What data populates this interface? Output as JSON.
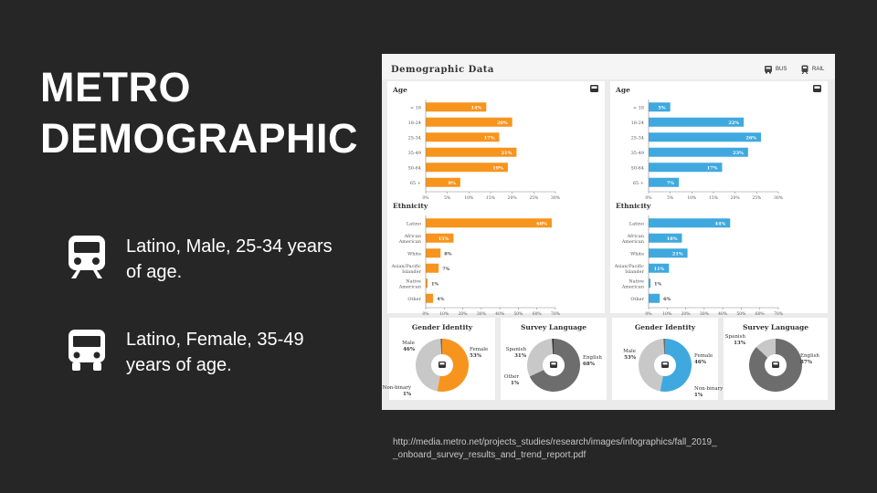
{
  "slide": {
    "title_line1": "METRO",
    "title_line2": "DEMOGRAPHIC",
    "rail_text": "Latino, Male, 25-34 years of age.",
    "bus_text": "Latino, Female, 35-49 years of age.",
    "source": "http://media.metro.net/projects_studies/research/images/infographics/fall_2019__onboard_survey_results_and_trend_report.pdf"
  },
  "infographic": {
    "title": "Demographic Data",
    "legend_bus": "BUS",
    "legend_rail": "RAIL",
    "colors": {
      "bus": "#f7941d",
      "rail": "#3fa9df",
      "grey": "#c8c8c8",
      "dark": "#6d6d6d"
    }
  },
  "chart_data": [
    {
      "id": "bus-age",
      "type": "bar",
      "orientation": "horizontal",
      "title": "Age",
      "categories": [
        "< 18",
        "18-24",
        "25-34",
        "35-49",
        "50-64",
        "65 +"
      ],
      "values": [
        14,
        20,
        17,
        21,
        19,
        8
      ],
      "data_labels": [
        "14%",
        "20%",
        "17%",
        "21%",
        "19%",
        "8%"
      ],
      "xlim": [
        0,
        30
      ],
      "xticks": [
        "0%",
        "5%",
        "10%",
        "15%",
        "20%",
        "25%",
        "30%"
      ],
      "color": "#f7941d"
    },
    {
      "id": "rail-age",
      "type": "bar",
      "orientation": "horizontal",
      "title": "Age",
      "categories": [
        "< 18",
        "18-24",
        "25-34",
        "35-49",
        "50-64",
        "65 +"
      ],
      "values": [
        5,
        22,
        26,
        23,
        17,
        7
      ],
      "data_labels": [
        "5%",
        "22%",
        "26%",
        "23%",
        "17%",
        "7%"
      ],
      "xlim": [
        0,
        30
      ],
      "xticks": [
        "0%",
        "5%",
        "10%",
        "15%",
        "20%",
        "25%",
        "30%"
      ],
      "color": "#3fa9df"
    },
    {
      "id": "bus-eth",
      "type": "bar",
      "orientation": "horizontal",
      "title": "Ethnicity",
      "categories": [
        "Latino",
        "African American",
        "White",
        "Asian/Pacific Islander",
        "Native American",
        "Other"
      ],
      "values": [
        68,
        15,
        8,
        7,
        1,
        4
      ],
      "data_labels": [
        "68%",
        "15%",
        "8%",
        "7%",
        "1%",
        "4%"
      ],
      "xlim": [
        0,
        70
      ],
      "xticks": [
        "0%",
        "10%",
        "20%",
        "30%",
        "40%",
        "50%",
        "60%",
        "70%"
      ],
      "color": "#f7941d"
    },
    {
      "id": "rail-eth",
      "type": "bar",
      "orientation": "horizontal",
      "title": "Ethnicity",
      "categories": [
        "Latino",
        "African American",
        "White",
        "Asian/Pacific Islander",
        "Native American",
        "Other"
      ],
      "values": [
        44,
        18,
        21,
        11,
        1,
        6
      ],
      "data_labels": [
        "44%",
        "18%",
        "21%",
        "11%",
        "1%",
        "6%"
      ],
      "xlim": [
        0,
        70
      ],
      "xticks": [
        "0%",
        "10%",
        "20%",
        "30%",
        "40%",
        "50%",
        "60%",
        "70%"
      ],
      "color": "#3fa9df"
    },
    {
      "id": "bus-gender",
      "type": "pie",
      "title": "Gender Identity",
      "categories": [
        "Female",
        "Male",
        "Non-binary"
      ],
      "values": [
        53,
        46,
        1
      ],
      "data_labels": [
        "53%",
        "46%",
        "1%"
      ],
      "colors": [
        "#f7941d",
        "#c8c8c8",
        "#6d6d6d"
      ]
    },
    {
      "id": "bus-lang",
      "type": "pie",
      "title": "Survey Language",
      "categories": [
        "English",
        "Spanish",
        "Other"
      ],
      "values": [
        68,
        31,
        1
      ],
      "data_labels": [
        "68%",
        "31%",
        "1%"
      ],
      "colors": [
        "#6d6d6d",
        "#c8c8c8",
        "#333333"
      ]
    },
    {
      "id": "rail-gender",
      "type": "pie",
      "title": "Gender Identity",
      "categories": [
        "Male",
        "Female",
        "Non-binary"
      ],
      "values": [
        53,
        46,
        1
      ],
      "data_labels": [
        "53%",
        "46%",
        "1%"
      ],
      "colors": [
        "#3fa9df",
        "#c8c8c8",
        "#6d6d6d"
      ]
    },
    {
      "id": "rail-lang",
      "type": "pie",
      "title": "Survey Language",
      "categories": [
        "English",
        "Spanish"
      ],
      "values": [
        87,
        13
      ],
      "data_labels": [
        "87%",
        "13%"
      ],
      "colors": [
        "#6d6d6d",
        "#c8c8c8"
      ]
    }
  ]
}
